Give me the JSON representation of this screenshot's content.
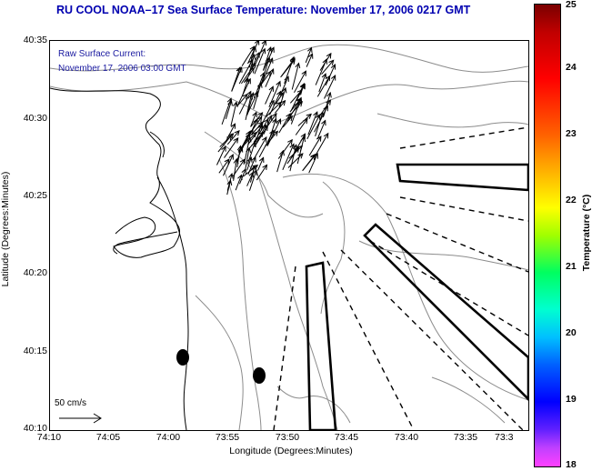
{
  "title": "RU COOL  NOAA–17  Sea Surface Temperature:  November 17, 2006 0217 GMT",
  "overlay": {
    "line1": "Raw Surface Current:",
    "line2": "November 17, 2006 03:00 GMT"
  },
  "axes": {
    "xlabel": "Longitude (Degrees:Minutes)",
    "ylabel": "Latitude (Degrees:Minutes)",
    "xticks": [
      "74:10",
      "74:05",
      "74:00",
      "73:55",
      "73:50",
      "73:45",
      "73:40",
      "73:35",
      "73:3"
    ],
    "yticks": [
      "40:35",
      "40:30",
      "40:25",
      "40:20",
      "40:15",
      "40:10"
    ]
  },
  "scale": {
    "label": "50 cm/s"
  },
  "colorbar": {
    "label": "Temperature (°C)",
    "ticks": [
      "25",
      "24",
      "23",
      "22",
      "21",
      "20",
      "19",
      "18"
    ],
    "min": 18,
    "max": 25
  },
  "colors": {
    "title": "#0000b0",
    "overlay_text": "#1a1aa0",
    "contour": "#8c8c8c",
    "coast": "#000000"
  }
}
